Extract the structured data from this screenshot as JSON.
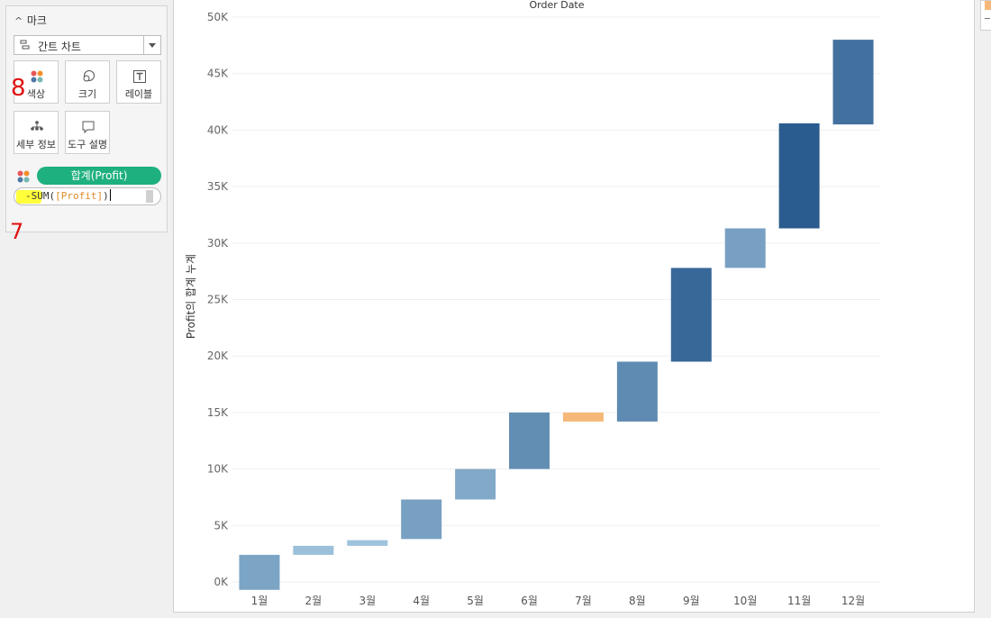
{
  "marks_card": {
    "title": "마크",
    "mark_type": "간트 차트",
    "buttons": {
      "color": "색상",
      "size": "크기",
      "label": "레이블",
      "detail": "세부 정보",
      "tooltip": "도구 설명"
    },
    "color_pill": "합계(Profit)",
    "calc_input": {
      "prefix": "-SUM(",
      "field": "[Profit]",
      "suffix": ")"
    }
  },
  "colors": {
    "pill": "#1fb07f",
    "negative": "#f6b878",
    "highlight": "#ffff3a",
    "blue_light": "#a5c9e0",
    "blue_dark": "#2b5c8f"
  },
  "annotations": [
    "8",
    "7"
  ],
  "chart_data": {
    "type": "bar",
    "subtype": "gantt-waterfall",
    "title": "Order Date",
    "ylabel": "Profit의 합계 누계",
    "categories": [
      "1월",
      "2월",
      "3월",
      "4월",
      "5월",
      "6월",
      "7월",
      "8월",
      "9월",
      "10월",
      "11월",
      "12월"
    ],
    "start": [
      -700,
      2400,
      3200,
      3800,
      7300,
      10000,
      15000,
      14200,
      19500,
      27800,
      31300,
      40500
    ],
    "end": [
      2400,
      3200,
      3700,
      7300,
      10000,
      15000,
      14200,
      19500,
      27800,
      31300,
      40600,
      48000
    ],
    "profit": [
      3100,
      800,
      500,
      3500,
      2700,
      5000,
      -800,
      5300,
      8300,
      3500,
      9300,
      7500
    ],
    "ylim": [
      -1000,
      50500
    ],
    "yticks": [
      0,
      5000,
      10000,
      15000,
      20000,
      25000,
      30000,
      35000,
      40000,
      45000,
      50000
    ],
    "ytick_labels": [
      "0K",
      "5K",
      "10K",
      "15K",
      "20K",
      "25K",
      "30K",
      "35K",
      "40K",
      "45K",
      "50K"
    ],
    "grid": true,
    "legend": "none"
  }
}
